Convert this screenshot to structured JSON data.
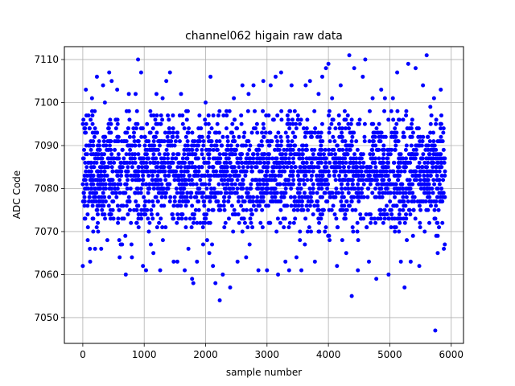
{
  "chart_data": {
    "type": "scatter",
    "title": "channel062 higain raw data",
    "xlabel": "sample number",
    "ylabel": "ADC Code",
    "xlim": [
      -300,
      6200
    ],
    "ylim": [
      7044,
      7113
    ],
    "xticks": [
      0,
      1000,
      2000,
      3000,
      4000,
      5000,
      6000
    ],
    "yticks": [
      7050,
      7060,
      7070,
      7080,
      7090,
      7100,
      7110
    ],
    "grid": true,
    "marker_color": "#0000ff",
    "series": [
      {
        "points": [
          [
            0,
            7062
          ],
          [
            50,
            7103
          ],
          [
            80,
            7068
          ],
          [
            120,
            7063
          ],
          [
            150,
            7101
          ],
          [
            160,
            7073
          ],
          [
            200,
            7066
          ],
          [
            230,
            7106
          ],
          [
            250,
            7070
          ],
          [
            300,
            7066
          ],
          [
            330,
            7104
          ],
          [
            360,
            7100
          ],
          [
            400,
            7068
          ],
          [
            430,
            7107
          ],
          [
            470,
            7105
          ],
          [
            500,
            7073
          ],
          [
            560,
            7103
          ],
          [
            600,
            7064
          ],
          [
            640,
            7067
          ],
          [
            700,
            7060
          ],
          [
            750,
            7102
          ],
          [
            800,
            7064
          ],
          [
            860,
            7102
          ],
          [
            900,
            7110
          ],
          [
            950,
            7107
          ],
          [
            980,
            7062
          ],
          [
            1030,
            7061
          ],
          [
            1100,
            7098
          ],
          [
            1150,
            7065
          ],
          [
            1200,
            7102
          ],
          [
            1260,
            7061
          ],
          [
            1300,
            7101
          ],
          [
            1360,
            7105
          ],
          [
            1420,
            7107
          ],
          [
            1480,
            7063
          ],
          [
            1540,
            7063
          ],
          [
            1600,
            7102
          ],
          [
            1660,
            7061
          ],
          [
            1720,
            7066
          ],
          [
            1780,
            7059
          ],
          [
            1800,
            7058
          ],
          [
            1860,
            7063
          ],
          [
            1900,
            7097
          ],
          [
            1960,
            7067
          ],
          [
            2000,
            7100
          ],
          [
            2060,
            7065
          ],
          [
            2080,
            7106
          ],
          [
            2120,
            7062
          ],
          [
            2160,
            7058
          ],
          [
            2230,
            7054
          ],
          [
            2280,
            7060
          ],
          [
            2340,
            7098
          ],
          [
            2400,
            7057
          ],
          [
            2460,
            7101
          ],
          [
            2520,
            7063
          ],
          [
            2600,
            7104
          ],
          [
            2660,
            7064
          ],
          [
            2700,
            7102
          ],
          [
            2780,
            7104
          ],
          [
            2860,
            7061
          ],
          [
            2940,
            7105
          ],
          [
            3000,
            7061
          ],
          [
            3060,
            7104
          ],
          [
            3140,
            7106
          ],
          [
            3180,
            7060
          ],
          [
            3230,
            7107
          ],
          [
            3300,
            7063
          ],
          [
            3360,
            7061
          ],
          [
            3400,
            7104
          ],
          [
            3480,
            7064
          ],
          [
            3560,
            7061
          ],
          [
            3630,
            7104
          ],
          [
            3700,
            7105
          ],
          [
            3780,
            7063
          ],
          [
            3840,
            7102
          ],
          [
            3900,
            7106
          ],
          [
            3960,
            7108
          ],
          [
            4000,
            7109
          ],
          [
            4060,
            7101
          ],
          [
            4140,
            7062
          ],
          [
            4200,
            7104
          ],
          [
            4290,
            7065
          ],
          [
            4340,
            7111
          ],
          [
            4380,
            7055
          ],
          [
            4420,
            7108
          ],
          [
            4480,
            7061
          ],
          [
            4560,
            7106
          ],
          [
            4600,
            7110
          ],
          [
            4660,
            7063
          ],
          [
            4720,
            7101
          ],
          [
            4780,
            7059
          ],
          [
            4860,
            7103
          ],
          [
            4920,
            7101
          ],
          [
            4980,
            7060
          ],
          [
            5050,
            7101
          ],
          [
            5120,
            7107
          ],
          [
            5180,
            7063
          ],
          [
            5240,
            7057
          ],
          [
            5300,
            7109
          ],
          [
            5340,
            7063
          ],
          [
            5420,
            7108
          ],
          [
            5480,
            7062
          ],
          [
            5540,
            7104
          ],
          [
            5600,
            7111
          ],
          [
            5660,
            7099
          ],
          [
            5720,
            7101
          ],
          [
            5740,
            7047
          ],
          [
            5780,
            7065
          ],
          [
            5830,
            7103
          ],
          [
            5880,
            7066
          ]
        ]
      }
    ]
  }
}
